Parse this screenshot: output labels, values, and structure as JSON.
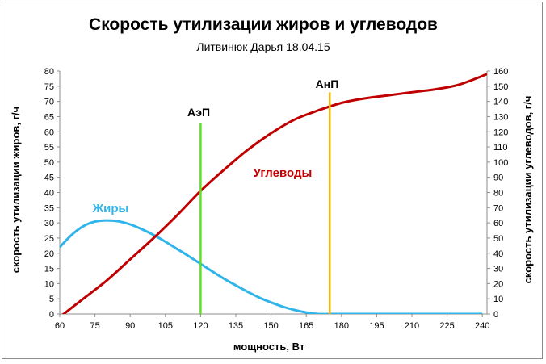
{
  "chart_data": {
    "type": "line",
    "title": "Скорость утилизации жиров и углеводов",
    "subtitle": "Литвинюк Дарья 18.04.15",
    "xlabel": "мощность, Вт",
    "ylabel_left": "скорость утилизации жиров,  г/ч",
    "ylabel_right": "скорость утилизации углеводов, г/ч",
    "xlim": [
      60,
      242
    ],
    "x_ticks": [
      60,
      75,
      90,
      105,
      120,
      135,
      150,
      165,
      180,
      195,
      210,
      225,
      240
    ],
    "ylim_left": [
      0,
      80
    ],
    "y_ticks_left": [
      0,
      5,
      10,
      15,
      20,
      25,
      30,
      35,
      40,
      45,
      50,
      55,
      60,
      65,
      70,
      75,
      80
    ],
    "ylim_right": [
      0,
      160
    ],
    "y_ticks_right": [
      0,
      10,
      20,
      30,
      40,
      50,
      60,
      70,
      80,
      90,
      100,
      110,
      120,
      130,
      140,
      150,
      160
    ],
    "grid": false,
    "series": [
      {
        "name": "Жиры",
        "axis": "left",
        "color": "#2fb5ea",
        "x": [
          60,
          65,
          70,
          75,
          80,
          85,
          90,
          95,
          100,
          105,
          110,
          115,
          120,
          125,
          130,
          135,
          140,
          145,
          150,
          155,
          160,
          165,
          170,
          175,
          180,
          190,
          200,
          210,
          220,
          230,
          240
        ],
        "values": [
          22.0,
          26.0,
          28.9,
          30.4,
          30.8,
          30.5,
          29.5,
          27.9,
          26.0,
          23.8,
          21.4,
          19.0,
          16.5,
          14.0,
          11.6,
          9.4,
          7.3,
          5.4,
          3.8,
          2.4,
          1.3,
          0.5,
          0.0,
          0.0,
          0.0,
          0.0,
          0.0,
          0.0,
          0.0,
          0.0,
          0.0
        ]
      },
      {
        "name": "Углеводы",
        "axis": "right",
        "color": "#c00000",
        "x": [
          60,
          70,
          80,
          90,
          100,
          110,
          120,
          130,
          140,
          150,
          160,
          170,
          180,
          190,
          200,
          210,
          220,
          230,
          242
        ],
        "values": [
          -2,
          10,
          22,
          36,
          50,
          65,
          81,
          95,
          108,
          119,
          128,
          134,
          139,
          142,
          144,
          146,
          148,
          151,
          158
        ]
      }
    ],
    "markers": [
      {
        "label": "АэП",
        "x": 120,
        "color": "#5ce020",
        "top_left": 63
      },
      {
        "label": "АнП",
        "x": 175,
        "color": "#f5b800",
        "top_left": 73
      }
    ]
  }
}
